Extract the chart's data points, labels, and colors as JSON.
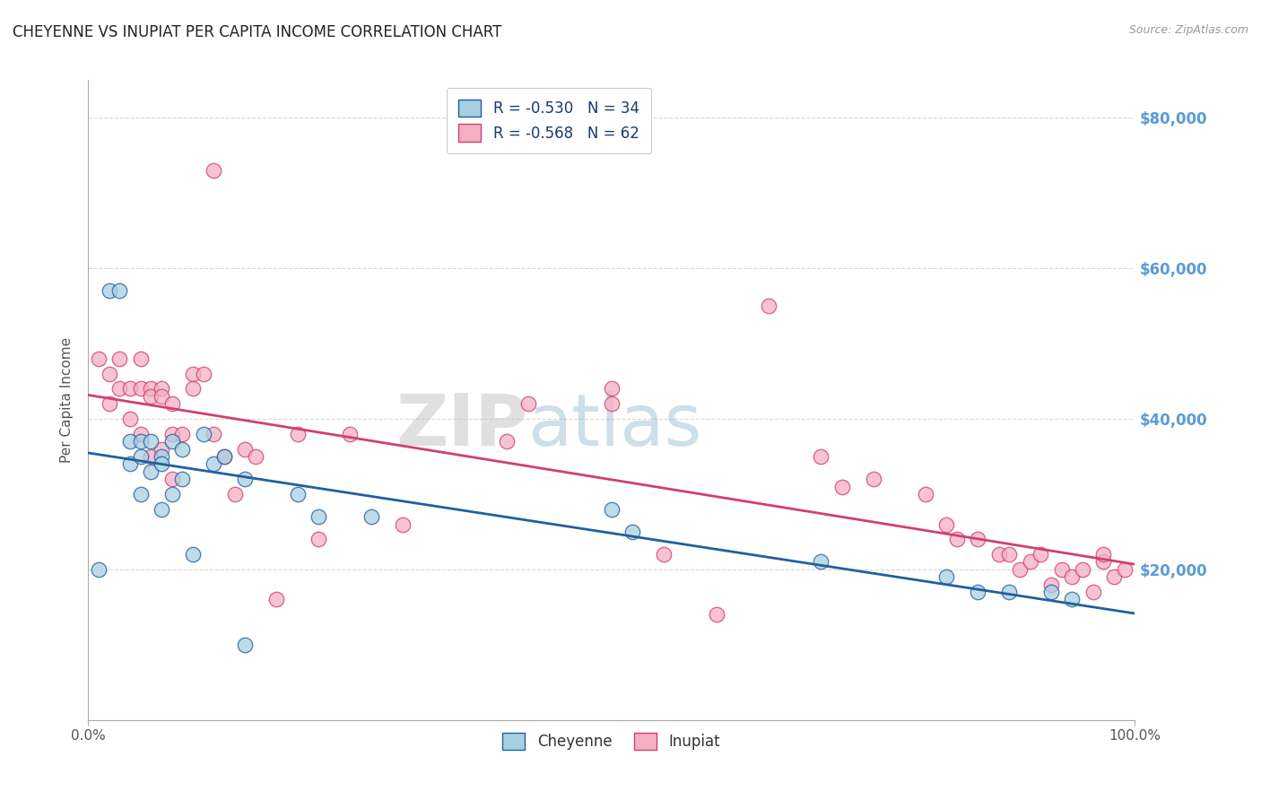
{
  "title": "CHEYENNE VS INUPIAT PER CAPITA INCOME CORRELATION CHART",
  "source": "Source: ZipAtlas.com",
  "ylabel": "Per Capita Income",
  "watermark": "ZIPatlas",
  "xlim": [
    0.0,
    1.0
  ],
  "ylim": [
    0,
    85000
  ],
  "yticks": [
    0,
    20000,
    40000,
    60000,
    80000
  ],
  "xtick_positions": [
    0.0,
    1.0
  ],
  "xtick_labels": [
    "0.0%",
    "100.0%"
  ],
  "legend_line1": "R = -0.530   N = 34",
  "legend_line2": "R = -0.568   N = 62",
  "cheyenne_color": "#a8cfe0",
  "inupiat_color": "#f5afc4",
  "line_cheyenne_color": "#2060a0",
  "line_inupiat_color": "#d04070",
  "background_color": "#ffffff",
  "grid_color": "#d8d8d8",
  "title_color": "#222222",
  "right_axis_color": "#5b9bd5",
  "ytick_right_labels": [
    "",
    "$20,000",
    "$40,000",
    "$60,000",
    "$80,000"
  ],
  "cheyenne_x": [
    0.01,
    0.02,
    0.03,
    0.04,
    0.04,
    0.05,
    0.05,
    0.05,
    0.06,
    0.06,
    0.07,
    0.07,
    0.07,
    0.08,
    0.08,
    0.09,
    0.09,
    0.1,
    0.11,
    0.12,
    0.13,
    0.15,
    0.2,
    0.22,
    0.27,
    0.5,
    0.52,
    0.7,
    0.82,
    0.85,
    0.88,
    0.92,
    0.94,
    0.15
  ],
  "cheyenne_y": [
    20000,
    57000,
    57000,
    37000,
    34000,
    37000,
    35000,
    30000,
    37000,
    33000,
    35000,
    34000,
    28000,
    37000,
    30000,
    36000,
    32000,
    22000,
    38000,
    34000,
    35000,
    32000,
    30000,
    27000,
    27000,
    28000,
    25000,
    21000,
    19000,
    17000,
    17000,
    17000,
    16000,
    10000
  ],
  "inupiat_x": [
    0.01,
    0.02,
    0.02,
    0.03,
    0.03,
    0.04,
    0.04,
    0.05,
    0.05,
    0.05,
    0.06,
    0.06,
    0.06,
    0.07,
    0.07,
    0.07,
    0.08,
    0.08,
    0.08,
    0.09,
    0.1,
    0.1,
    0.11,
    0.12,
    0.13,
    0.14,
    0.15,
    0.16,
    0.18,
    0.2,
    0.22,
    0.25,
    0.3,
    0.4,
    0.42,
    0.5,
    0.5,
    0.55,
    0.6,
    0.65,
    0.7,
    0.72,
    0.75,
    0.8,
    0.82,
    0.83,
    0.85,
    0.87,
    0.88,
    0.89,
    0.9,
    0.91,
    0.92,
    0.93,
    0.94,
    0.95,
    0.96,
    0.97,
    0.97,
    0.98,
    0.99,
    0.12
  ],
  "inupiat_y": [
    48000,
    46000,
    42000,
    48000,
    44000,
    44000,
    40000,
    48000,
    44000,
    38000,
    44000,
    43000,
    35000,
    44000,
    43000,
    36000,
    42000,
    38000,
    32000,
    38000,
    46000,
    44000,
    46000,
    38000,
    35000,
    30000,
    36000,
    35000,
    16000,
    38000,
    24000,
    38000,
    26000,
    37000,
    42000,
    44000,
    42000,
    22000,
    14000,
    55000,
    35000,
    31000,
    32000,
    30000,
    26000,
    24000,
    24000,
    22000,
    22000,
    20000,
    21000,
    22000,
    18000,
    20000,
    19000,
    20000,
    17000,
    21000,
    22000,
    19000,
    20000,
    73000
  ]
}
